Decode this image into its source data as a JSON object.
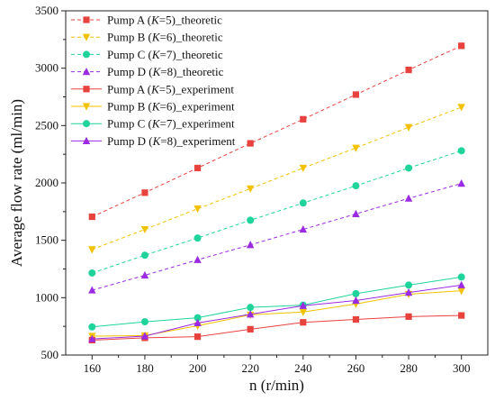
{
  "chart_data": {
    "type": "line",
    "xlabel": "n (r/min)",
    "ylabel": "Average flow rate (ml/min)",
    "x": [
      160,
      180,
      200,
      220,
      240,
      260,
      280,
      300
    ],
    "xlim": [
      150,
      310
    ],
    "ylim": [
      500,
      3500
    ],
    "x_ticks": [
      160,
      180,
      200,
      220,
      240,
      260,
      280,
      300
    ],
    "y_ticks": [
      500,
      1000,
      1500,
      2000,
      2500,
      3000,
      3500
    ],
    "grid": false,
    "legend_position": "top-left",
    "series": [
      {
        "legend_prefix": "Pump A (",
        "legend_k": "K",
        "legend_suffix": "=5)_theoretic",
        "values": [
          1705,
          1915,
          2130,
          2345,
          2555,
          2770,
          2985,
          3195
        ],
        "color": "#e8423f",
        "marker": "square",
        "dashed": true
      },
      {
        "legend_prefix": "Pump B (",
        "legend_k": "K",
        "legend_suffix": "=6)_theoretic",
        "values": [
          1420,
          1595,
          1775,
          1950,
          2130,
          2305,
          2485,
          2660
        ],
        "color": "#f2c200",
        "marker": "triangle-down",
        "dashed": true
      },
      {
        "legend_prefix": "Pump C (",
        "legend_k": "K",
        "legend_suffix": "=7)_theoretic",
        "values": [
          1215,
          1370,
          1520,
          1675,
          1825,
          1975,
          2130,
          2280
        ],
        "color": "#1fd49a",
        "marker": "circle",
        "dashed": true
      },
      {
        "legend_prefix": "Pump D (",
        "legend_k": "K",
        "legend_suffix": "=8)_theoretic",
        "values": [
          1065,
          1195,
          1330,
          1460,
          1595,
          1730,
          1865,
          1995
        ],
        "color": "#9a2be2",
        "marker": "triangle-up",
        "dashed": true
      },
      {
        "legend_prefix": "Pump A (",
        "legend_k": "K",
        "legend_suffix": "=5)_experiment",
        "values": [
          630,
          650,
          660,
          725,
          785,
          810,
          835,
          845
        ],
        "color": "#e8423f",
        "marker": "square",
        "dashed": false
      },
      {
        "legend_prefix": "Pump B (",
        "legend_k": "K",
        "legend_suffix": "=6)_experiment",
        "values": [
          665,
          670,
          755,
          850,
          875,
          945,
          1030,
          1060
        ],
        "color": "#f2c200",
        "marker": "triangle-down",
        "dashed": false
      },
      {
        "legend_prefix": "Pump C (",
        "legend_k": "K",
        "legend_suffix": "=7)_experiment",
        "values": [
          745,
          790,
          825,
          915,
          935,
          1035,
          1110,
          1180
        ],
        "color": "#1fd49a",
        "marker": "circle",
        "dashed": false
      },
      {
        "legend_prefix": "Pump D (",
        "legend_k": "K",
        "legend_suffix": "=8)_experiment",
        "values": [
          640,
          665,
          780,
          855,
          930,
          975,
          1045,
          1110
        ],
        "color": "#9a2be2",
        "marker": "triangle-up",
        "dashed": false
      }
    ]
  }
}
